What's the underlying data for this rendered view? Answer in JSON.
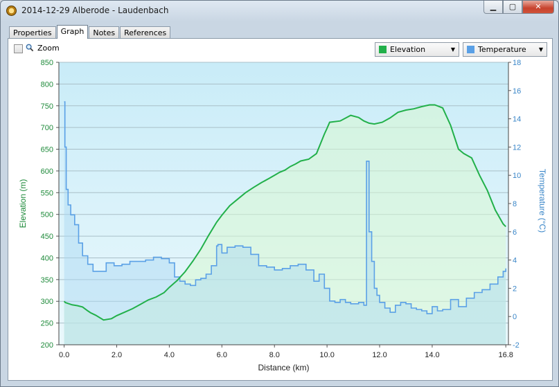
{
  "window": {
    "title": "2014-12-29 Alberode - Laudenbach",
    "minimize": "▁",
    "maximize": "▢",
    "close": "✕"
  },
  "tabs": [
    {
      "label": "Properties",
      "active": false
    },
    {
      "label": "Graph",
      "active": true
    },
    {
      "label": "Notes",
      "active": false
    },
    {
      "label": "References",
      "active": false
    }
  ],
  "toolbar": {
    "zoom_label": "Zoom",
    "zoom_checked": false,
    "left_select": {
      "value": "Elevation",
      "color": "#22b04a"
    },
    "right_select": {
      "value": "Temperature",
      "color": "#5aa0e6"
    }
  },
  "chart_data": {
    "type": "area",
    "xlabel": "Distance (km)",
    "ylabel_left": "Elevation (m)",
    "ylabel_right": "Temperature (°C)",
    "x_ticks": [
      "0.0",
      "2.0",
      "4.0",
      "6.0",
      "8.0",
      "10.0",
      "12.0",
      "14.0",
      "16.8"
    ],
    "y_left_ticks": [
      "200",
      "250",
      "300",
      "350",
      "400",
      "450",
      "500",
      "550",
      "600",
      "650",
      "700",
      "750",
      "800",
      "850"
    ],
    "y_right_ticks": [
      "-2",
      "0",
      "2",
      "4",
      "6",
      "8",
      "10",
      "12",
      "14",
      "16",
      "18"
    ],
    "xlim": [
      -0.2,
      16.9
    ],
    "ylim_left": [
      200,
      850
    ],
    "ylim_right": [
      -2,
      18
    ],
    "grid": true,
    "series": [
      {
        "name": "Elevation",
        "axis": "left",
        "color": "#22b04a",
        "x": [
          0,
          0.05,
          0.1,
          0.3,
          0.5,
          0.7,
          0.9,
          1.0,
          1.2,
          1.5,
          1.8,
          2.0,
          2.3,
          2.6,
          2.9,
          3.2,
          3.5,
          3.8,
          4.0,
          4.3,
          4.6,
          4.9,
          5.2,
          5.5,
          5.8,
          6.0,
          6.3,
          6.6,
          6.9,
          7.2,
          7.5,
          7.8,
          8.0,
          8.2,
          8.4,
          8.6,
          8.8,
          9.0,
          9.3,
          9.6,
          9.9,
          10.0,
          10.1,
          10.5,
          10.9,
          11.2,
          11.4,
          11.6,
          11.8,
          12.1,
          12.4,
          12.7,
          13.0,
          13.3,
          13.6,
          13.9,
          14.1,
          14.4,
          14.7,
          15.0,
          15.2,
          15.5,
          15.8,
          16.1,
          16.4,
          16.7,
          16.8
        ],
        "y": [
          300,
          297,
          296,
          292,
          290,
          287,
          278,
          274,
          268,
          257,
          260,
          267,
          275,
          283,
          293,
          303,
          310,
          320,
          332,
          348,
          368,
          393,
          420,
          452,
          482,
          498,
          520,
          535,
          550,
          562,
          573,
          583,
          590,
          597,
          602,
          610,
          616,
          623,
          627,
          640,
          685,
          698,
          712,
          715,
          728,
          723,
          715,
          710,
          708,
          712,
          722,
          735,
          740,
          743,
          748,
          752,
          752,
          745,
          705,
          650,
          640,
          630,
          590,
          555,
          510,
          478,
          472
        ]
      },
      {
        "name": "Temperature",
        "axis": "right",
        "color": "#5aa0e6",
        "x": [
          0,
          0.03,
          0.08,
          0.15,
          0.25,
          0.4,
          0.55,
          0.7,
          0.9,
          1.1,
          1.3,
          1.6,
          1.9,
          2.2,
          2.5,
          2.8,
          3.1,
          3.4,
          3.7,
          4.0,
          4.2,
          4.4,
          4.6,
          4.8,
          5.0,
          5.2,
          5.4,
          5.6,
          5.8,
          5.85,
          6.0,
          6.2,
          6.5,
          6.8,
          7.1,
          7.4,
          7.7,
          8.0,
          8.3,
          8.6,
          8.9,
          9.2,
          9.5,
          9.7,
          9.9,
          10.1,
          10.3,
          10.5,
          10.7,
          10.9,
          11.2,
          11.4,
          11.5,
          11.6,
          11.7,
          11.8,
          11.9,
          12.0,
          12.2,
          12.4,
          12.6,
          12.8,
          13.0,
          13.2,
          13.4,
          13.6,
          13.8,
          14.0,
          14.2,
          14.4,
          14.7,
          15.0,
          15.3,
          15.6,
          15.9,
          16.2,
          16.5,
          16.7,
          16.8
        ],
        "y": [
          15.2,
          12,
          9,
          7.9,
          7.2,
          6.5,
          5.2,
          4.3,
          3.7,
          3.2,
          3.2,
          3.8,
          3.6,
          3.7,
          3.9,
          3.9,
          4.0,
          4.2,
          4.1,
          3.8,
          2.8,
          2.5,
          2.3,
          2.2,
          2.6,
          2.7,
          3.0,
          3.6,
          5.0,
          5.1,
          4.5,
          4.9,
          5.0,
          4.9,
          4.4,
          3.6,
          3.5,
          3.3,
          3.4,
          3.6,
          3.7,
          3.3,
          2.5,
          3.0,
          2.0,
          1.1,
          1.0,
          1.2,
          1.0,
          0.9,
          1.0,
          0.8,
          11.0,
          6.0,
          3.9,
          2.0,
          1.5,
          1.0,
          0.6,
          0.3,
          0.8,
          1.0,
          0.9,
          0.6,
          0.5,
          0.4,
          0.2,
          0.7,
          0.4,
          0.5,
          1.2,
          0.7,
          1.3,
          1.7,
          1.9,
          2.3,
          2.8,
          3.2,
          3.4
        ]
      }
    ]
  }
}
